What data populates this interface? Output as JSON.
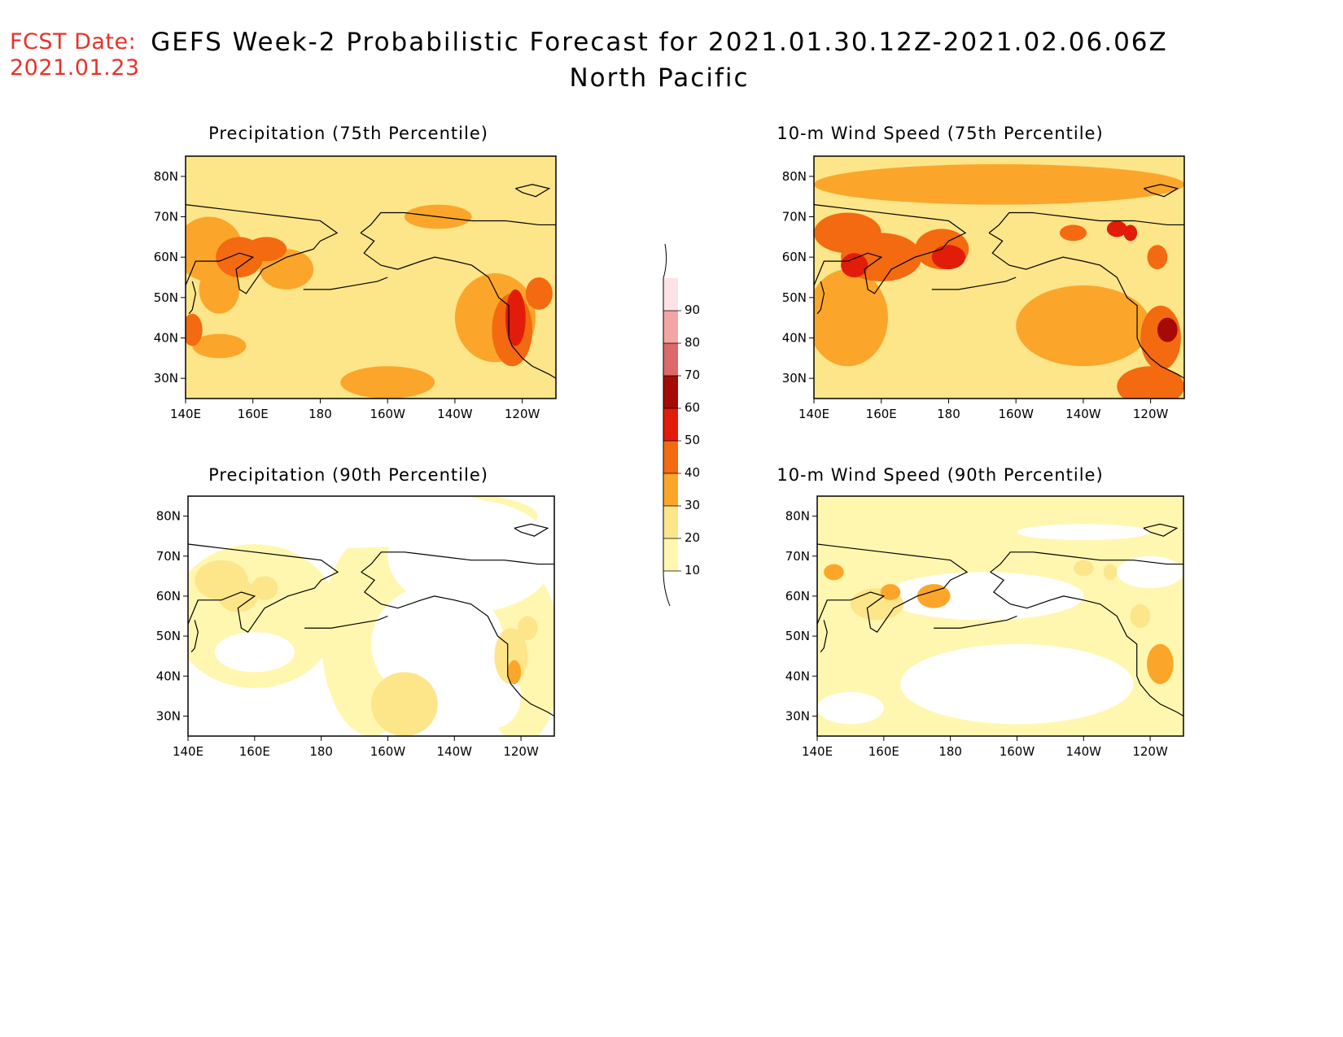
{
  "fcst_label": [
    "FCST Date:",
    "2021.01.23"
  ],
  "title": "GEFS Week-2 Probabilistic Forecast for 2021.01.30.12Z-2021.02.06.06Z",
  "subtitle": "North Pacific",
  "map_extent": {
    "lon": [
      140,
      250
    ],
    "lat": [
      25,
      85
    ]
  },
  "lat_ticks": [
    "80N",
    "70N",
    "60N",
    "50N",
    "40N",
    "30N"
  ],
  "lon_ticks": [
    "140E",
    "160E",
    "180",
    "160W",
    "140W",
    "120W"
  ],
  "legend": {
    "levels": [
      "10",
      "20",
      "30",
      "40",
      "50",
      "60",
      "70",
      "80",
      "90"
    ],
    "colors": [
      "#fff7b0",
      "#fde58a",
      "#fba62a",
      "#f36a10",
      "#e21c0a",
      "#a60a04",
      "#dc6a6a",
      "#f3a5a5",
      "#fde2e5"
    ]
  },
  "panels": [
    {
      "id": "precip-75",
      "title": "Precipitation (75th Percentile)",
      "base_level": 1
    },
    {
      "id": "wind-75",
      "title": "10-m Wind Speed (75th Percentile)",
      "base_level": 1
    },
    {
      "id": "precip-90",
      "title": "Precipitation (90th Percentile)",
      "base_level": -1
    },
    {
      "id": "wind-90",
      "title": "10-m Wind Speed (90th Percentile)",
      "base_level": 0
    }
  ]
}
